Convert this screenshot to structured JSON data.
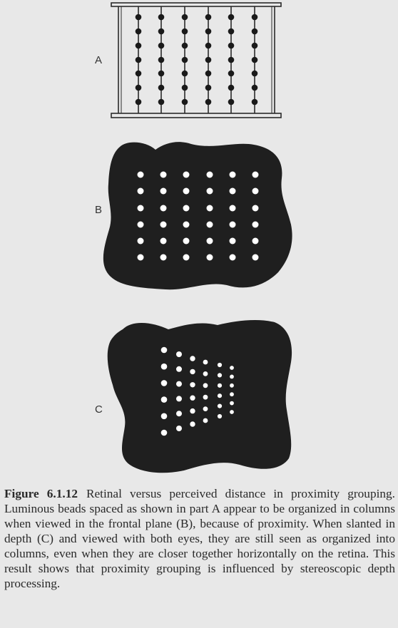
{
  "panels": [
    {
      "id": "A",
      "label": "A"
    },
    {
      "id": "B",
      "label": "B"
    },
    {
      "id": "C",
      "label": "C"
    }
  ],
  "caption": {
    "figure_number": "Figure 6.1.12",
    "text": "Retinal versus perceived distance in proximity grouping. Luminous beads spaced as shown in part A appear to be organized in columns when viewed in the frontal plane (B), because of proximity. When slanted in depth (C) and viewed with both eyes, they are still seen as organized into columns, even when they are closer together horizontally on the retina. This result shows that proximity grouping is influenced by stereoscopic depth processing."
  },
  "colors": {
    "background": "#e8e8e8",
    "blob": "#1f1f1f",
    "bead_light": "#ffffff",
    "bead_dark": "#1a1a1a",
    "frame": "#2a2a2a"
  }
}
